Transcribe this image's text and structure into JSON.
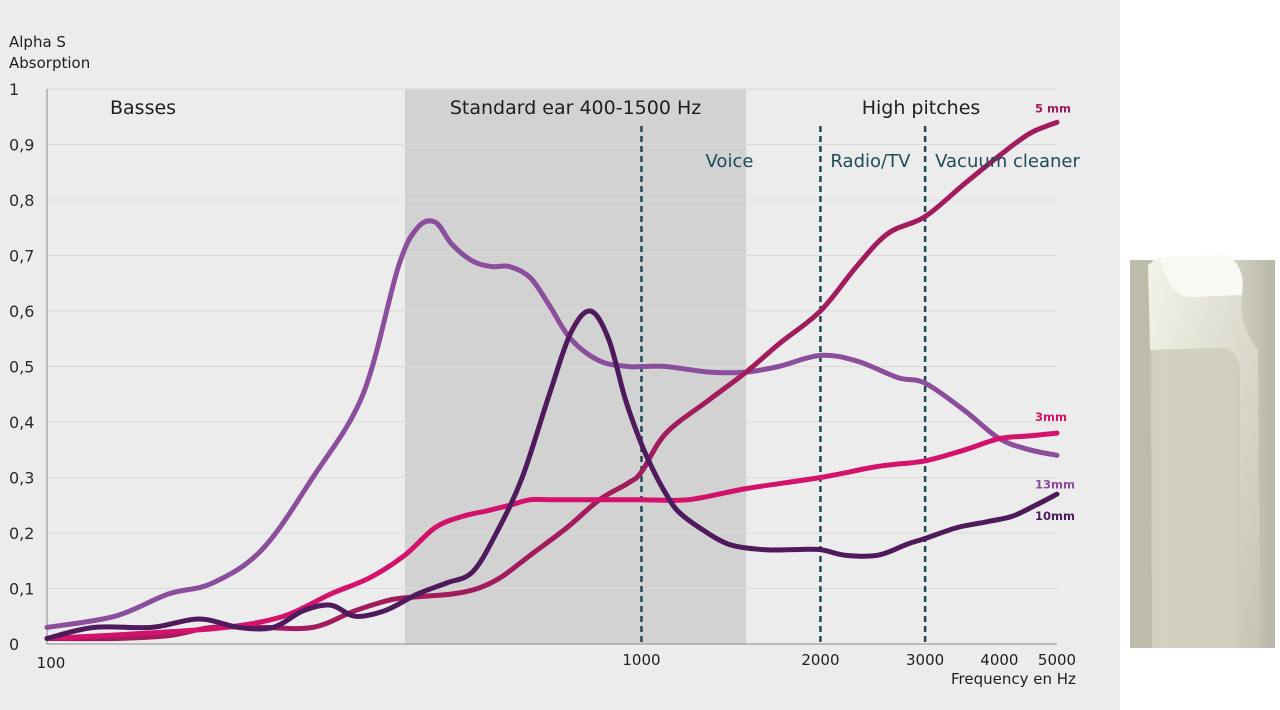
{
  "chart_data": {
    "type": "line",
    "title": "",
    "ylabel": [
      "Alpha S",
      "Absorption"
    ],
    "xlabel": "Frequency en Hz",
    "xscale": "log",
    "xlim": [
      100,
      5000
    ],
    "ylim": [
      0,
      1
    ],
    "y_ticks": [
      {
        "value": 0,
        "label": "0"
      },
      {
        "value": 0.1,
        "label": "0,1"
      },
      {
        "value": 0.2,
        "label": "0,2"
      },
      {
        "value": 0.3,
        "label": "0,3"
      },
      {
        "value": 0.4,
        "label": "0,4"
      },
      {
        "value": 0.5,
        "label": "0,5"
      },
      {
        "value": 0.6,
        "label": "0,6"
      },
      {
        "value": 0.7,
        "label": "0,7"
      },
      {
        "value": 0.8,
        "label": "0,8"
      },
      {
        "value": 0.9,
        "label": "0,9"
      },
      {
        "value": 1,
        "label": "1"
      }
    ],
    "x_ticks": [
      {
        "value": 100,
        "label": "100"
      },
      {
        "value": 1000,
        "label": "1000"
      },
      {
        "value": 2000,
        "label": "2000"
      },
      {
        "value": 3000,
        "label": "3000"
      },
      {
        "value": 4000,
        "label": "4000"
      },
      {
        "value": 5000,
        "label": "5000"
      }
    ],
    "grid": "horizontal",
    "regions": [
      {
        "label": "Basses",
        "from": 100,
        "to": 400,
        "shaded": false
      },
      {
        "label": "Standard ear 400-1500 Hz",
        "from": 400,
        "to": 1500,
        "shaded": true,
        "color": "#d2d2d2"
      },
      {
        "label": "High pitches",
        "from": 1500,
        "to": 5000,
        "shaded": false
      }
    ],
    "reference_lines": [
      {
        "x": 1000,
        "label": "Voice"
      },
      {
        "x": 2000,
        "label": "Radio/TV"
      },
      {
        "x": 3000,
        "label": "Vacuum cleaner"
      }
    ],
    "series": [
      {
        "name": "13mm",
        "color": "#8a4e9c",
        "x": [
          100,
          130,
          160,
          190,
          230,
          280,
          340,
          390,
          420,
          450,
          480,
          520,
          560,
          600,
          650,
          700,
          760,
          850,
          950,
          1000,
          1100,
          1300,
          1500,
          1700,
          2000,
          2300,
          2700,
          3000,
          3500,
          4000,
          4500,
          5000
        ],
        "y": [
          0.03,
          0.05,
          0.09,
          0.11,
          0.17,
          0.3,
          0.45,
          0.68,
          0.75,
          0.76,
          0.72,
          0.69,
          0.68,
          0.68,
          0.66,
          0.61,
          0.55,
          0.51,
          0.5,
          0.5,
          0.5,
          0.49,
          0.49,
          0.5,
          0.52,
          0.51,
          0.48,
          0.47,
          0.42,
          0.37,
          0.35,
          0.34
        ]
      },
      {
        "name": "5 mm",
        "color": "#a11b5d",
        "x": [
          100,
          130,
          160,
          190,
          230,
          280,
          330,
          380,
          420,
          480,
          530,
          580,
          650,
          750,
          850,
          950,
          1000,
          1100,
          1300,
          1500,
          1700,
          2000,
          2300,
          2600,
          3000,
          3500,
          4000,
          4500,
          5000
        ],
        "y": [
          0.01,
          0.01,
          0.015,
          0.03,
          0.03,
          0.03,
          0.06,
          0.08,
          0.085,
          0.09,
          0.1,
          0.12,
          0.16,
          0.21,
          0.26,
          0.29,
          0.31,
          0.38,
          0.44,
          0.49,
          0.54,
          0.6,
          0.68,
          0.74,
          0.77,
          0.83,
          0.88,
          0.92,
          0.94
        ]
      },
      {
        "name": "3mm",
        "color": "#d3136b",
        "x": [
          100,
          150,
          200,
          250,
          300,
          350,
          400,
          450,
          500,
          550,
          600,
          650,
          700,
          800,
          900,
          1000,
          1200,
          1500,
          2000,
          2500,
          3000,
          3500,
          4000,
          4500,
          5000
        ],
        "y": [
          0.01,
          0.02,
          0.03,
          0.05,
          0.09,
          0.12,
          0.16,
          0.21,
          0.23,
          0.24,
          0.25,
          0.26,
          0.26,
          0.26,
          0.26,
          0.26,
          0.26,
          0.28,
          0.3,
          0.32,
          0.33,
          0.35,
          0.37,
          0.375,
          0.38
        ]
      },
      {
        "name": "10mm",
        "color": "#4e1a5c",
        "x": [
          100,
          120,
          150,
          180,
          210,
          240,
          270,
          300,
          330,
          370,
          420,
          470,
          520,
          570,
          630,
          700,
          760,
          820,
          880,
          940,
          1000,
          1050,
          1100,
          1150,
          1250,
          1400,
          1600,
          1800,
          2000,
          2200,
          2500,
          2800,
          3000,
          3400,
          3800,
          4200,
          4600,
          5000
        ],
        "y": [
          0.01,
          0.03,
          0.03,
          0.045,
          0.03,
          0.03,
          0.06,
          0.07,
          0.05,
          0.06,
          0.09,
          0.11,
          0.13,
          0.2,
          0.3,
          0.45,
          0.56,
          0.6,
          0.55,
          0.44,
          0.36,
          0.31,
          0.27,
          0.24,
          0.21,
          0.18,
          0.17,
          0.17,
          0.17,
          0.16,
          0.16,
          0.18,
          0.19,
          0.21,
          0.22,
          0.23,
          0.25,
          0.27
        ]
      }
    ]
  },
  "sample_photo": {
    "description_icon": "material-sample-photo"
  }
}
